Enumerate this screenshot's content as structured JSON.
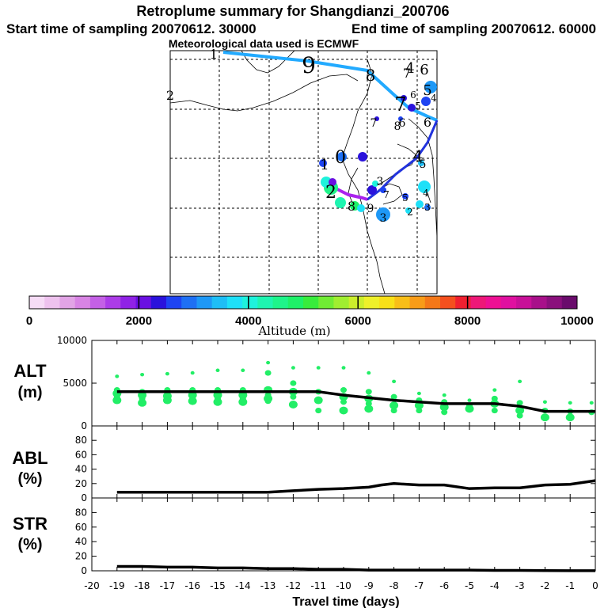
{
  "header": {
    "title": "Retroplume summary for Shangdianzi_200706",
    "start_label": "Start time of sampling 20070612. 30000",
    "end_label": "End time of sampling 20070612. 60000",
    "met_label": "Meteorological data used is ECMWF"
  },
  "colors": {
    "colorbar": [
      "#f6dcf6",
      "#eec2ee",
      "#e2a4e6",
      "#d884e4",
      "#c460e6",
      "#ac3ce8",
      "#9022e6",
      "#6a10e2",
      "#2a12dc",
      "#1e44f2",
      "#1e70f4",
      "#1e98f6",
      "#1ebef6",
      "#1ee0f8",
      "#1ef2dc",
      "#1ef4b0",
      "#1ef48a",
      "#1ef068",
      "#38ec3c",
      "#70ec34",
      "#a0ee30",
      "#ccee2c",
      "#eef02a",
      "#f8e018",
      "#f8be18",
      "#f89c18",
      "#f47818",
      "#f4501e",
      "#f02030",
      "#ee1878",
      "#ee1094",
      "#e010a0",
      "#c81098",
      "#a8108a",
      "#8a107c",
      "#6a0c6c"
    ],
    "alt_dots": "#22ee66",
    "track_light": "#22aaff",
    "track_dark": "#2233dd",
    "track_violet": "#aa22ee"
  },
  "map": {
    "day_labels": [
      "0",
      "1",
      "2",
      "3",
      "4",
      "5",
      "6",
      "7",
      "8",
      "9",
      "1",
      "2",
      "3",
      "4",
      "5",
      "6",
      "7",
      "8",
      "9",
      "2",
      "3",
      "4",
      "5",
      "6",
      "7",
      "8",
      "4",
      "5",
      "6",
      "7"
    ]
  },
  "colorbar": {
    "tick_labels": [
      "0",
      "2000",
      "4000",
      "6000",
      "8000",
      "10000"
    ],
    "label": "Altitude (m)"
  },
  "panels": {
    "alt": {
      "label": "ALT",
      "unit": "(m)",
      "ticks": [
        "0",
        "5000",
        "10000"
      ]
    },
    "abl": {
      "label": "ABL",
      "unit": "(%)",
      "ticks": [
        "0",
        "20",
        "40",
        "60",
        "80"
      ]
    },
    "str": {
      "label": "STR",
      "unit": "(%)",
      "ticks": [
        "0",
        "20",
        "40",
        "60",
        "80"
      ]
    }
  },
  "x_axis": {
    "label": "Travel time (days)",
    "ticks": [
      "-20",
      "-19",
      "-18",
      "-17",
      "-16",
      "-15",
      "-14",
      "-13",
      "-12",
      "-11",
      "-10",
      "-9",
      "-8",
      "-7",
      "-6",
      "-5",
      "-4",
      "-3",
      "-2",
      "-1",
      "0"
    ]
  },
  "chart_data": [
    {
      "type": "line",
      "title": "ALT",
      "ylabel": "(m)",
      "xlabel": "Travel time (days)",
      "xlim": [
        -20,
        0
      ],
      "ylim": [
        0,
        10000
      ],
      "series": [
        {
          "name": "mean altitude",
          "x": [
            -19,
            -18,
            -17,
            -16,
            -15,
            -14,
            -13,
            -12,
            -11,
            -10,
            -9,
            -8,
            -7,
            -6,
            -5,
            -4,
            -3,
            -2,
            -1,
            0
          ],
          "values": [
            4000,
            4000,
            4000,
            4000,
            4000,
            4000,
            4000,
            4000,
            4000,
            3600,
            3300,
            3000,
            2800,
            2600,
            2600,
            2600,
            2300,
            1700,
            1700,
            1700
          ]
        }
      ],
      "clusters": [
        {
          "x": -19,
          "values": [
            5800,
            4200,
            3800,
            3400,
            3000
          ]
        },
        {
          "x": -18,
          "values": [
            6000,
            4000,
            3600,
            3200,
            2700
          ]
        },
        {
          "x": -17,
          "values": [
            6100,
            4200,
            3500,
            3200,
            3000
          ]
        },
        {
          "x": -16,
          "values": [
            6200,
            4200,
            3600,
            3200,
            2900
          ]
        },
        {
          "x": -15,
          "values": [
            6500,
            4200,
            3600,
            3200,
            2800
          ]
        },
        {
          "x": -14,
          "values": [
            6500,
            4200,
            3600,
            3200,
            2800
          ]
        },
        {
          "x": -13,
          "values": [
            7400,
            6200,
            4200,
            3600,
            3200,
            2900
          ]
        },
        {
          "x": -12,
          "values": [
            6800,
            5000,
            4000,
            3400,
            2500
          ]
        },
        {
          "x": -11,
          "values": [
            6800,
            4000,
            3000,
            1800
          ]
        },
        {
          "x": -10,
          "values": [
            6800,
            4200,
            3400,
            2800,
            1800
          ]
        },
        {
          "x": -9,
          "values": [
            6200,
            4000,
            3200,
            2600,
            2000
          ]
        },
        {
          "x": -8,
          "values": [
            5200,
            3400,
            2400,
            1800
          ]
        },
        {
          "x": -7,
          "values": [
            3800,
            3000,
            2400,
            1800
          ]
        },
        {
          "x": -6,
          "values": [
            3600,
            2800,
            2200,
            1600
          ]
        },
        {
          "x": -5,
          "values": [
            3000,
            2400,
            2000
          ]
        },
        {
          "x": -4,
          "values": [
            4200,
            3200,
            2600,
            1800
          ]
        },
        {
          "x": -3,
          "values": [
            5200,
            2700,
            1800,
            1200
          ]
        },
        {
          "x": -2,
          "values": [
            2800,
            1800,
            1000
          ]
        },
        {
          "x": -1,
          "values": [
            2700,
            1700,
            1000
          ]
        },
        {
          "x": -0.15,
          "values": [
            2700,
            1600
          ]
        }
      ]
    },
    {
      "type": "line",
      "title": "ABL",
      "ylabel": "(%)",
      "xlim": [
        -20,
        0
      ],
      "ylim": [
        0,
        100
      ],
      "series": [
        {
          "name": "ABL fraction",
          "x": [
            -19,
            -18,
            -17,
            -16,
            -15,
            -14,
            -13,
            -12,
            -11,
            -10,
            -9,
            -8.5,
            -8,
            -7,
            -6,
            -5,
            -4,
            -3,
            -2,
            -1,
            0
          ],
          "values": [
            8,
            8,
            8,
            8,
            8,
            8,
            8,
            10,
            12,
            13,
            15,
            18,
            20,
            18,
            18,
            13,
            14,
            14,
            18,
            19,
            24
          ]
        }
      ]
    },
    {
      "type": "line",
      "title": "STR",
      "ylabel": "(%)",
      "xlim": [
        -20,
        0
      ],
      "ylim": [
        0,
        100
      ],
      "series": [
        {
          "name": "stratospheric fraction",
          "x": [
            -19,
            -18,
            -17,
            -16,
            -15,
            -14,
            -13,
            -12,
            -11,
            -10,
            -9,
            -8,
            -7,
            -6,
            -5,
            -4,
            -3,
            -2,
            -1,
            0
          ],
          "values": [
            6,
            6,
            5,
            5,
            4,
            4,
            3,
            3,
            2,
            2,
            1,
            1,
            1,
            1,
            1,
            0.5,
            0.5,
            0.3,
            0.2,
            0.1
          ]
        }
      ]
    }
  ]
}
